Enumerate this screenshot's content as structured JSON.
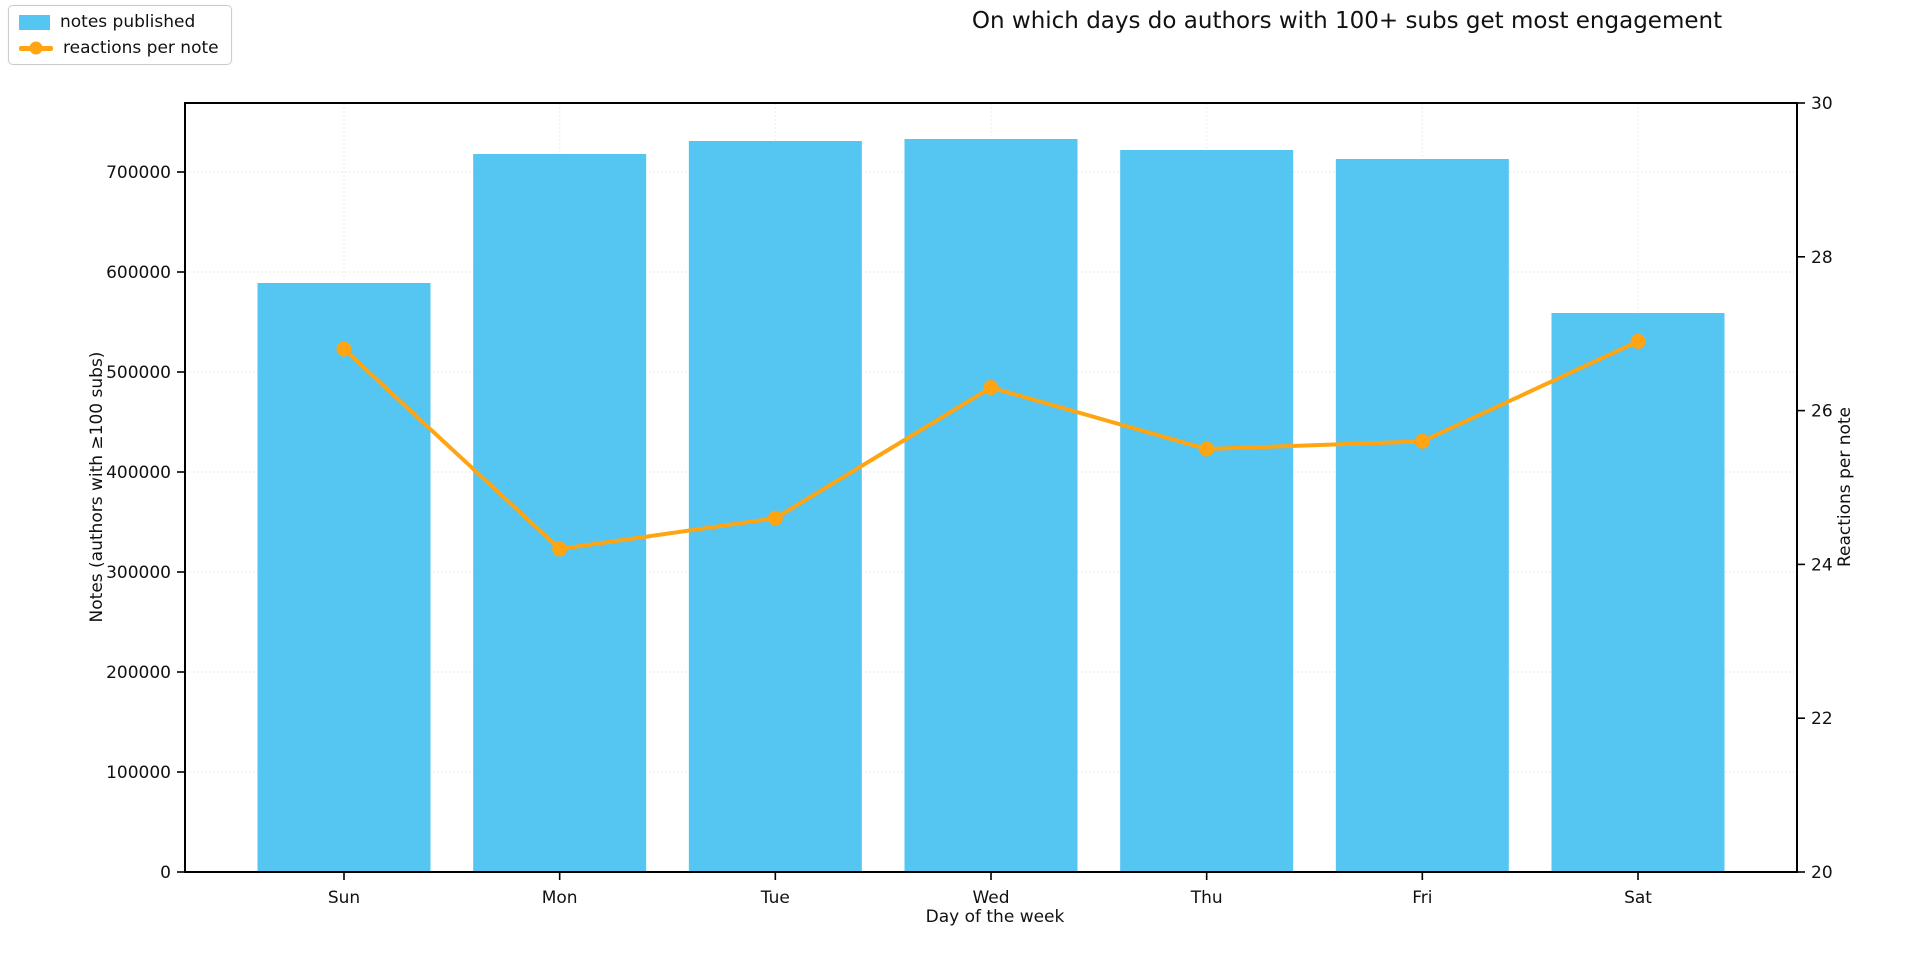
{
  "chart_data": {
    "type": "bar",
    "title": "On which days do authors with 100+ subs get most engagement",
    "categories": [
      "Sun",
      "Mon",
      "Tue",
      "Wed",
      "Thu",
      "Fri",
      "Sat"
    ],
    "series": [
      {
        "name": "notes published",
        "type": "bar",
        "axis": "left",
        "color": "#55C5F2",
        "values": [
          589000,
          718000,
          731000,
          733000,
          722000,
          713000,
          559000
        ]
      },
      {
        "name": "reactions per note",
        "type": "line",
        "axis": "right",
        "color": "#FFA412",
        "marker": "circle",
        "values": [
          26.8,
          24.2,
          24.6,
          26.3,
          25.5,
          25.6,
          26.9
        ]
      }
    ],
    "xlabel": "Day of the week",
    "ylabel_left": "Notes (authors with ≥100 subs)",
    "ylabel_right": "Reactions per note",
    "ylim_left": [
      0,
      769000
    ],
    "ylim_right": [
      20,
      30
    ],
    "yticks_left": [
      0,
      100000,
      200000,
      300000,
      400000,
      500000,
      600000,
      700000
    ],
    "yticks_right": [
      20,
      22,
      24,
      26,
      28,
      30
    ],
    "grid": "faint dotted horizontal and vertical",
    "legend_position": "upper left",
    "colors": {
      "bar": "#55C5F2",
      "line": "#FFA412",
      "spine": "#000000",
      "grid": "#eeeeee",
      "text": "#111111"
    }
  }
}
